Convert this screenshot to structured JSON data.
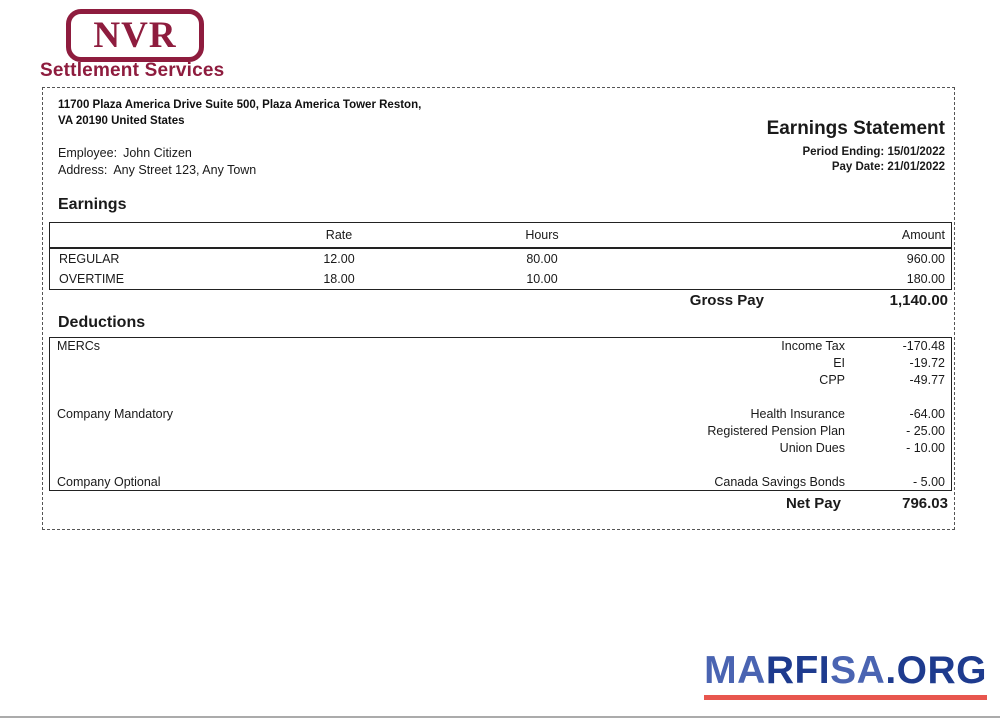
{
  "theme": {
    "maroon": "#8e1c3e",
    "wm_light": "#4a64b2",
    "wm_dark": "#1e3b8e",
    "wm_red": "#e8564e"
  },
  "logo": {
    "text": "NVR",
    "subtitle": "Settlement Services"
  },
  "header": {
    "company_address_line1": "11700 Plaza America Drive Suite 500, Plaza America Tower Reston,",
    "company_address_line2": "VA 20190 United States",
    "employee_label": "Employee:",
    "employee_name": "John Citizen",
    "address_label": "Address:",
    "address_value": "Any Street 123, Any Town",
    "title": "Earnings Statement",
    "period_ending": "Period Ending: 15/01/2022",
    "pay_date": "Pay Date: 21/01/2022"
  },
  "earnings": {
    "heading": "Earnings",
    "columns": [
      "Rate",
      "Hours",
      "Amount"
    ],
    "rows": [
      {
        "label": "REGULAR",
        "rate": "12.00",
        "hours": "80.00",
        "amount": "960.00"
      },
      {
        "label": "OVERTIME",
        "rate": "18.00",
        "hours": "10.00",
        "amount": "180.00"
      }
    ],
    "gross_pay_label": "Gross Pay",
    "gross_pay_amount": "1,140.00"
  },
  "deductions": {
    "heading": "Deductions",
    "groups": [
      {
        "category": "MERCs",
        "items": [
          {
            "name": "Income Tax",
            "amount": "-170.48"
          },
          {
            "name": "EI",
            "amount": "-19.72"
          },
          {
            "name": "CPP",
            "amount": "-49.77"
          }
        ]
      },
      {
        "category": "Company Mandatory",
        "items": [
          {
            "name": "Health Insurance",
            "amount": "-64.00"
          },
          {
            "name": "Registered Pension Plan",
            "amount": "- 25.00"
          },
          {
            "name": "Union Dues",
            "amount": "- 10.00"
          }
        ]
      },
      {
        "category": "Company Optional",
        "items": [
          {
            "name": "Canada Savings Bonds",
            "amount": "- 5.00"
          }
        ]
      }
    ],
    "net_pay_label": "Net Pay",
    "net_pay_amount": "796.03"
  },
  "watermark": {
    "segments": [
      {
        "text": "MA",
        "shade": "light"
      },
      {
        "text": "RFI",
        "shade": "dark"
      },
      {
        "text": "SA",
        "shade": "light"
      },
      {
        "text": ".ORG",
        "shade": "dark"
      }
    ]
  }
}
